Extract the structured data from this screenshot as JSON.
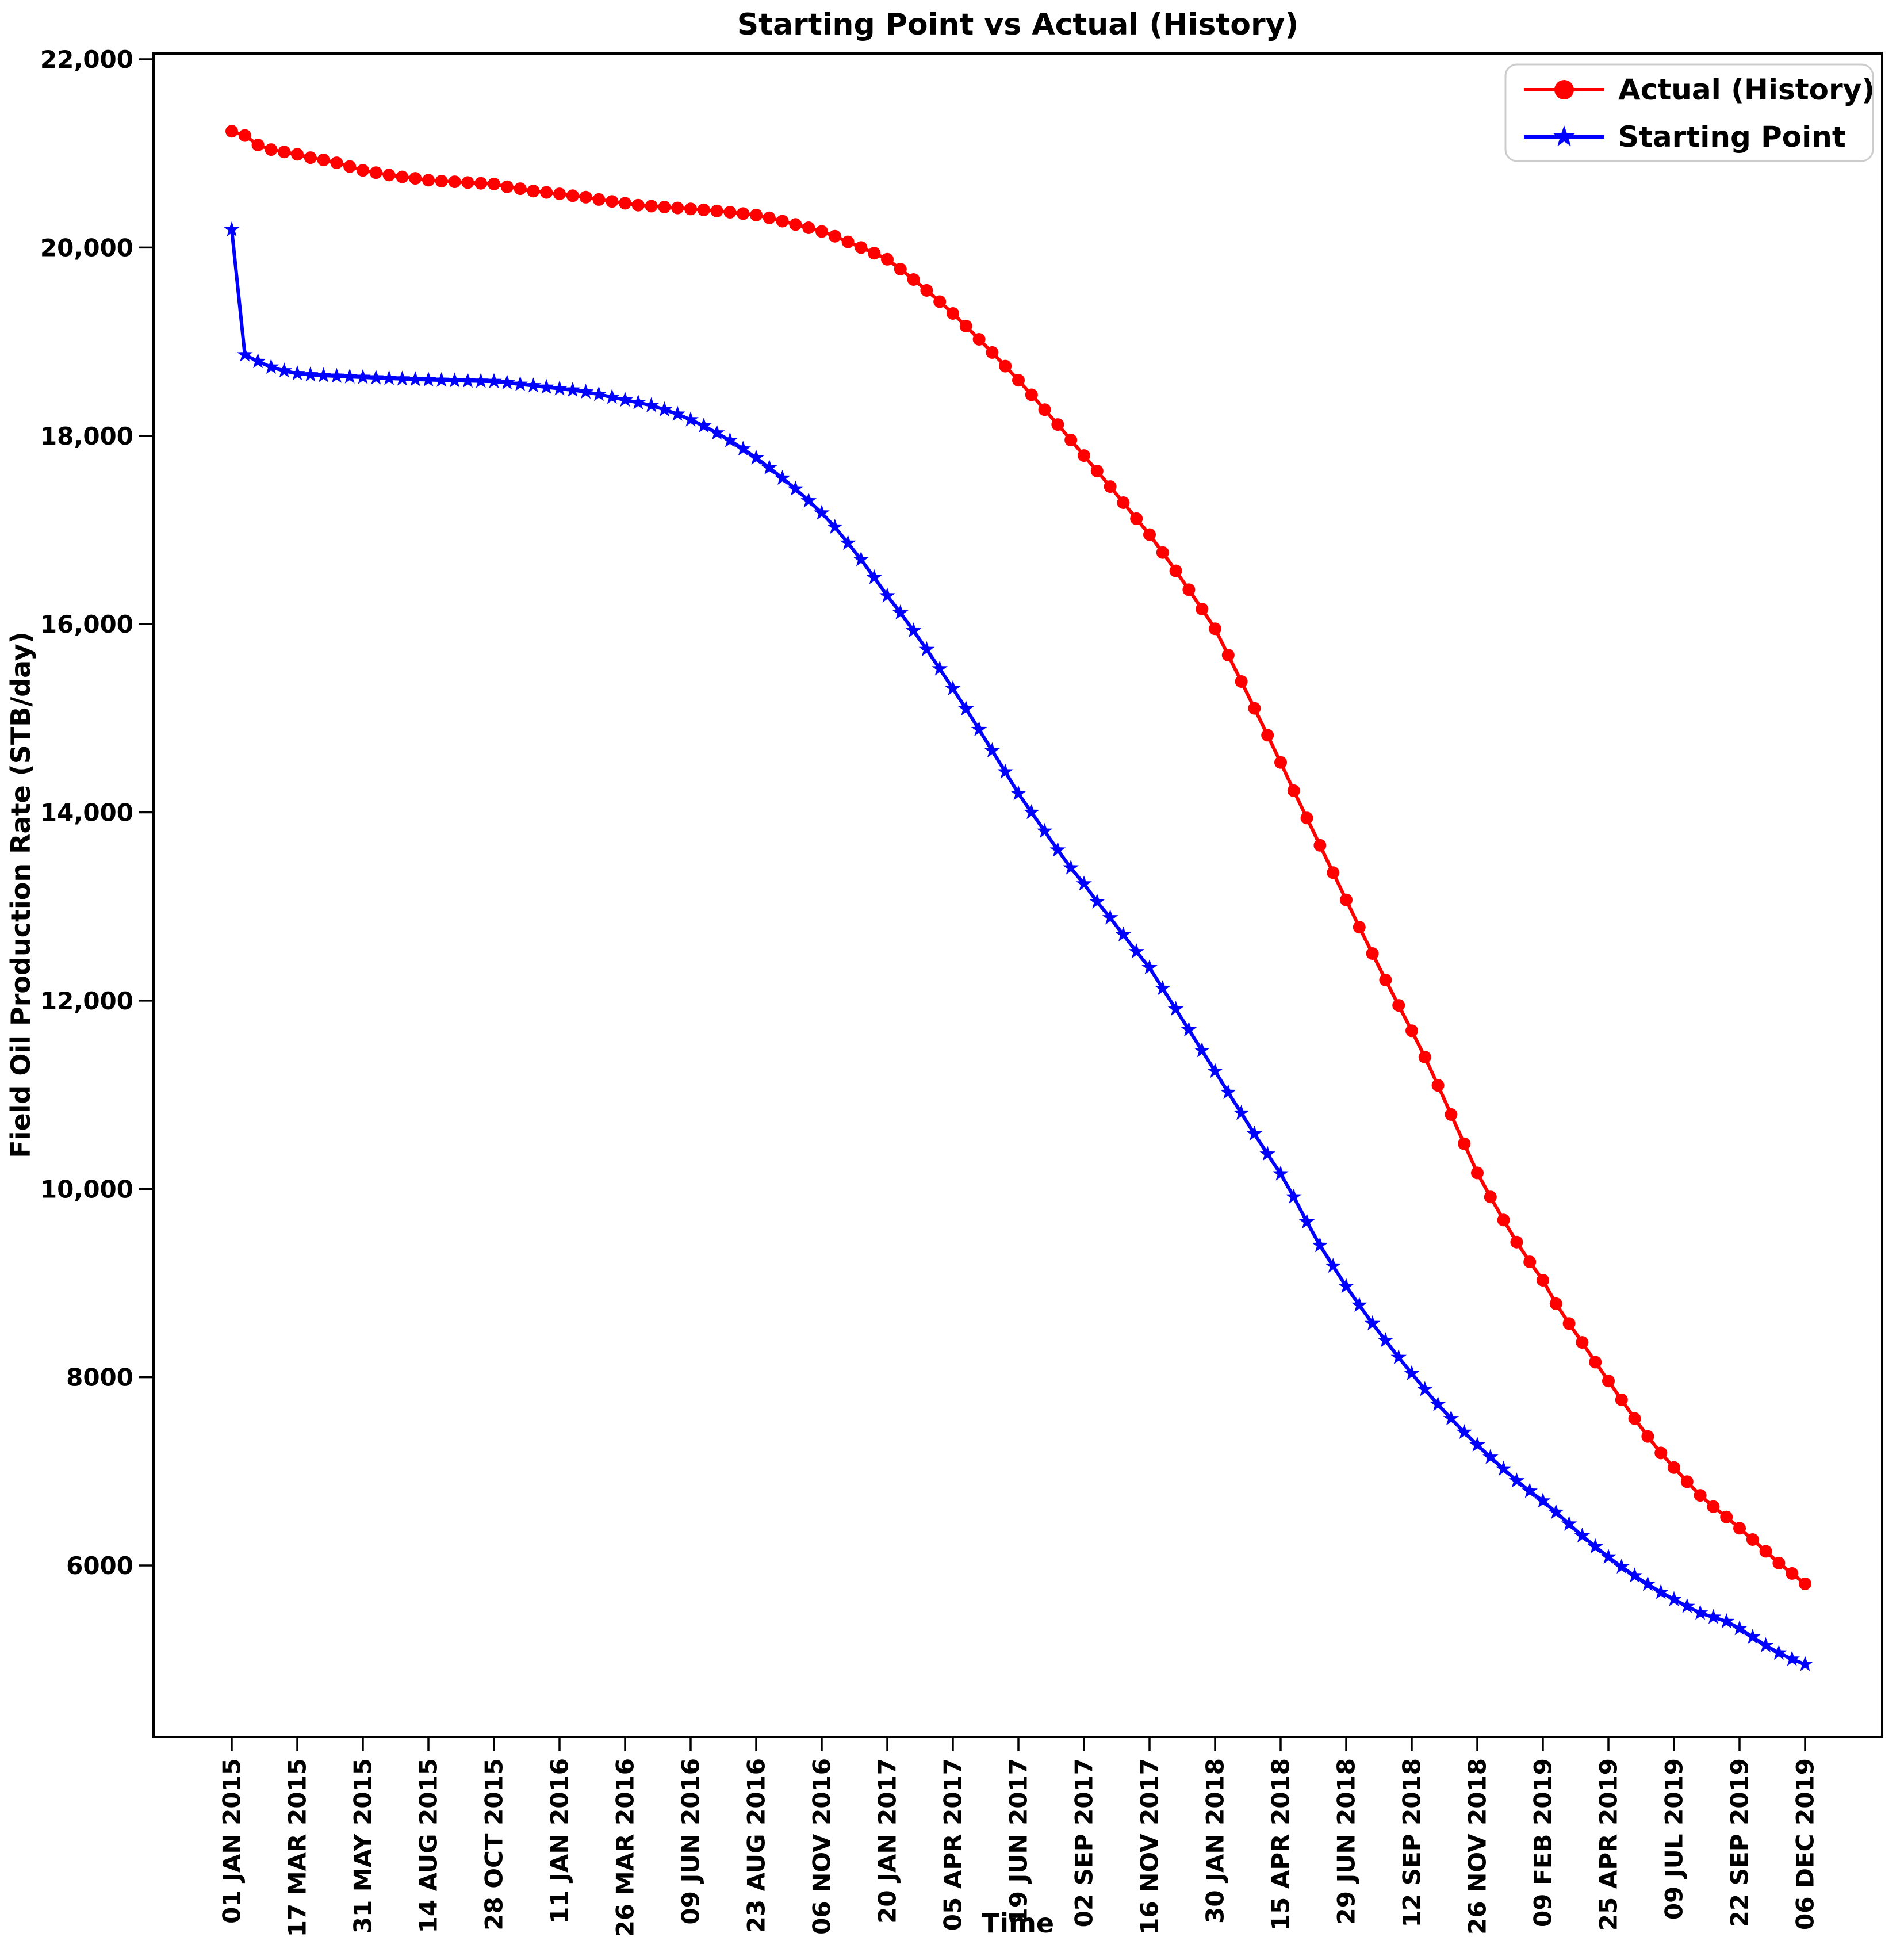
{
  "title": "Starting Point vs Actual (History)",
  "axes": {
    "x_label": "Time",
    "y_label": "Field Oil Production Rate (STB/day)"
  },
  "chart_data": {
    "type": "line",
    "title": "Starting Point vs Actual (History)",
    "xlabel": "Time",
    "ylabel": "Field Oil Production Rate (STB/day)",
    "grid": false,
    "legend_position": "upper right",
    "ylim": [
      4180,
      22060
    ],
    "y_ticks": [
      {
        "value": 6000,
        "label": "6000"
      },
      {
        "value": 8000,
        "label": "8000"
      },
      {
        "value": 10000,
        "label": "10,000"
      },
      {
        "value": 12000,
        "label": "12,000"
      },
      {
        "value": 14000,
        "label": "14,000"
      },
      {
        "value": 16000,
        "label": "16,000"
      },
      {
        "value": 18000,
        "label": "18,000"
      },
      {
        "value": 20000,
        "label": "20,000"
      },
      {
        "value": 22000,
        "label": "22,000"
      }
    ],
    "x_tick_every": 5,
    "x_tick_labels": [
      "01 JAN 2015",
      "17 MAR 2015",
      "31 MAY 2015",
      "14 AUG 2015",
      "28 OCT 2015",
      "11 JAN 2016",
      "26 MAR 2016",
      "09 JUN 2016",
      "23 AUG 2016",
      "06 NOV 2016",
      "20 JAN 2017",
      "05 APR 2017",
      "19 JUN 2017",
      "02 SEP 2017",
      "16 NOV 2017",
      "30 JAN 2018",
      "15 APR 2018",
      "29 JUN 2018",
      "12 SEP 2018",
      "26 NOV 2018",
      "09 FEB 2019",
      "25 APR 2019",
      "09 JUL 2019",
      "22 SEP 2019",
      "06 DEC 2019"
    ],
    "series": [
      {
        "name": "Actual (History)",
        "color": "#ff0000",
        "marker": "circle",
        "values": [
          21235,
          21190,
          21090,
          21040,
          21015,
          20990,
          20955,
          20930,
          20900,
          20860,
          20820,
          20795,
          20770,
          20750,
          20735,
          20715,
          20705,
          20698,
          20690,
          20682,
          20675,
          20645,
          20625,
          20600,
          20585,
          20570,
          20550,
          20535,
          20510,
          20490,
          20470,
          20450,
          20440,
          20430,
          20420,
          20410,
          20400,
          20388,
          20375,
          20360,
          20345,
          20315,
          20280,
          20245,
          20210,
          20170,
          20120,
          20060,
          20000,
          19940,
          19875,
          19770,
          19660,
          19545,
          19425,
          19300,
          19165,
          19025,
          18885,
          18740,
          18590,
          18435,
          18278,
          18120,
          17955,
          17790,
          17625,
          17460,
          17290,
          17120,
          16950,
          16760,
          16565,
          16365,
          16160,
          15950,
          15670,
          15390,
          15105,
          14820,
          14530,
          14230,
          13940,
          13650,
          13360,
          13070,
          12780,
          12500,
          12220,
          11950,
          11680,
          11400,
          11100,
          10790,
          10480,
          10170,
          9915,
          9670,
          9435,
          9225,
          9030,
          8780,
          8570,
          8370,
          8160,
          7960,
          7760,
          7560,
          7370,
          7195,
          7040,
          6890,
          6745,
          6625,
          6515,
          6395,
          6275,
          6150,
          6025,
          5915,
          5805
        ]
      },
      {
        "name": "Starting Point",
        "color": "#0000ff",
        "marker": "star",
        "values": [
          20190,
          18860,
          18790,
          18730,
          18690,
          18660,
          18648,
          18640,
          18633,
          18627,
          18621,
          18615,
          18610,
          18604,
          18599,
          18594,
          18590,
          18586,
          18583,
          18580,
          18577,
          18563,
          18547,
          18532,
          18516,
          18500,
          18486,
          18465,
          18440,
          18410,
          18380,
          18353,
          18322,
          18278,
          18230,
          18170,
          18105,
          18030,
          17950,
          17860,
          17765,
          17660,
          17550,
          17435,
          17310,
          17180,
          17030,
          16860,
          16685,
          16495,
          16300,
          16120,
          15930,
          15730,
          15525,
          15315,
          15100,
          14880,
          14655,
          14430,
          14200,
          14000,
          13800,
          13600,
          13410,
          13240,
          13050,
          12880,
          12700,
          12520,
          12350,
          12130,
          11910,
          11690,
          11470,
          11250,
          11025,
          10805,
          10585,
          10370,
          10160,
          9915,
          9650,
          9400,
          9180,
          8965,
          8765,
          8570,
          8390,
          8210,
          8040,
          7870,
          7710,
          7560,
          7415,
          7280,
          7150,
          7025,
          6900,
          6790,
          6685,
          6565,
          6440,
          6315,
          6200,
          6090,
          5985,
          5890,
          5800,
          5715,
          5640,
          5565,
          5495,
          5450,
          5405,
          5330,
          5240,
          5150,
          5070,
          5005,
          4950
        ]
      }
    ]
  }
}
